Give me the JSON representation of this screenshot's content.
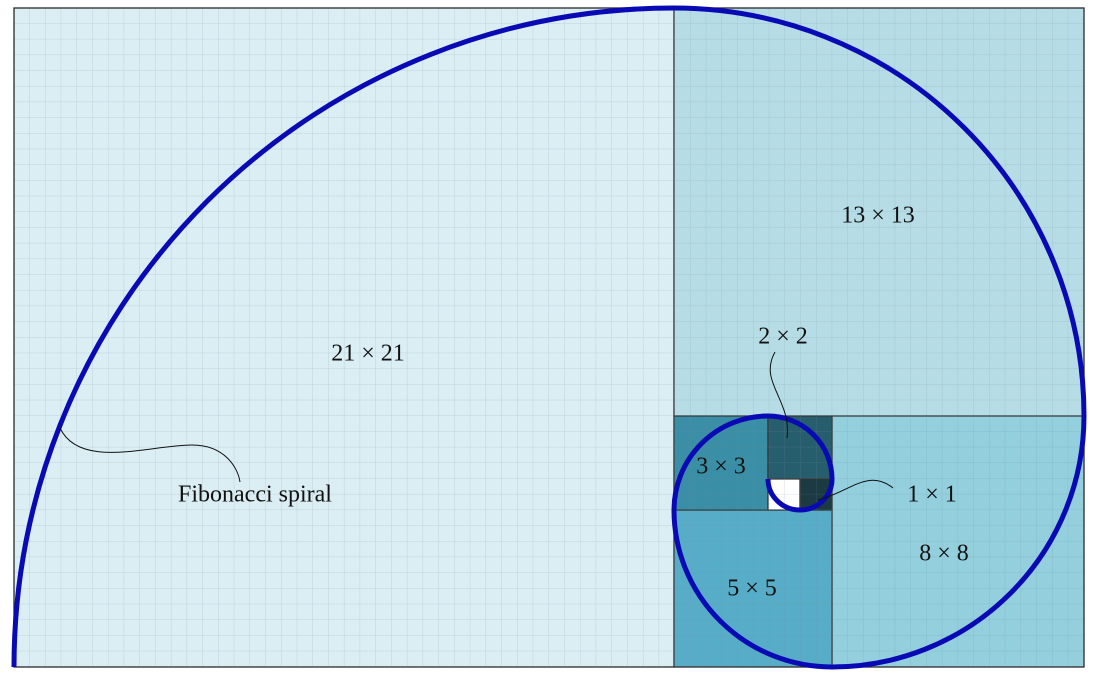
{
  "squares": [
    {
      "label": "21 × 21"
    },
    {
      "label": "13 × 13"
    },
    {
      "label": "8 × 8"
    },
    {
      "label": "5 × 5"
    },
    {
      "label": "3 × 3"
    },
    {
      "label": "2 × 2"
    },
    {
      "label": "1 × 1"
    }
  ],
  "annotation": "Fibonacci spiral"
}
